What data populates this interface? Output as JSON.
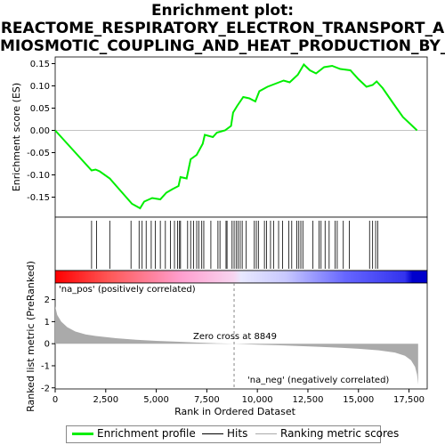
{
  "title": {
    "line1": "Enrichment plot:",
    "line2": "REACTOME_RESPIRATORY_ELECTRON_TRANSPORT_A",
    "line3": "MIOSMOTIC_COUPLING_AND_HEAT_PRODUCTION_BY_U"
  },
  "colors": {
    "es_line": "#00ee00",
    "hits": "#000000",
    "metric_fill": "#aaaaaa",
    "zero_cross": "#888888",
    "pos_label": "#dd0000",
    "neg_label": "#0000cc"
  },
  "chart_data": [
    {
      "type": "line",
      "name": "enrichment-profile",
      "ylabel": "Enrichment score (ES)",
      "xlim": [
        0,
        18400
      ],
      "ylim": [
        -0.195,
        0.165
      ],
      "yticks": [
        0.15,
        0.1,
        0.05,
        0.0,
        -0.05,
        -0.1,
        -0.15
      ],
      "ytick_labels": [
        "0.15",
        "0.10",
        "0.05",
        "0.00",
        "-0.05",
        "-0.10",
        "-0.15"
      ],
      "grid": false,
      "points": [
        [
          0,
          0.0
        ],
        [
          1800,
          -0.09
        ],
        [
          2000,
          -0.088
        ],
        [
          2200,
          -0.092
        ],
        [
          2700,
          -0.108
        ],
        [
          3800,
          -0.165
        ],
        [
          4200,
          -0.175
        ],
        [
          4400,
          -0.16
        ],
        [
          4800,
          -0.152
        ],
        [
          5200,
          -0.155
        ],
        [
          5500,
          -0.14
        ],
        [
          5800,
          -0.132
        ],
        [
          6100,
          -0.125
        ],
        [
          6200,
          -0.105
        ],
        [
          6500,
          -0.108
        ],
        [
          6700,
          -0.065
        ],
        [
          7000,
          -0.055
        ],
        [
          7300,
          -0.03
        ],
        [
          7400,
          -0.01
        ],
        [
          7800,
          -0.015
        ],
        [
          8000,
          -0.005
        ],
        [
          8400,
          0.0
        ],
        [
          8700,
          0.01
        ],
        [
          8800,
          0.04
        ],
        [
          9000,
          0.055
        ],
        [
          9300,
          0.075
        ],
        [
          9600,
          0.072
        ],
        [
          9900,
          0.065
        ],
        [
          10100,
          0.088
        ],
        [
          10500,
          0.098
        ],
        [
          10900,
          0.105
        ],
        [
          11300,
          0.112
        ],
        [
          11600,
          0.108
        ],
        [
          12000,
          0.125
        ],
        [
          12300,
          0.148
        ],
        [
          12600,
          0.135
        ],
        [
          12900,
          0.128
        ],
        [
          13300,
          0.142
        ],
        [
          13700,
          0.145
        ],
        [
          14100,
          0.138
        ],
        [
          14600,
          0.135
        ],
        [
          15000,
          0.115
        ],
        [
          15400,
          0.098
        ],
        [
          15700,
          0.102
        ],
        [
          15900,
          0.11
        ],
        [
          16200,
          0.095
        ],
        [
          16700,
          0.062
        ],
        [
          17200,
          0.03
        ],
        [
          17900,
          0.0
        ]
      ]
    },
    {
      "type": "hits",
      "name": "hits",
      "x": [
        1800,
        2050,
        2700,
        3750,
        4150,
        4300,
        4500,
        4750,
        4950,
        5200,
        5450,
        5700,
        5900,
        6050,
        6150,
        6200,
        6550,
        6700,
        6850,
        7000,
        7100,
        7250,
        7350,
        7700,
        8050,
        8150,
        8450,
        8500,
        8750,
        8850,
        8950,
        9050,
        9150,
        9250,
        9450,
        9850,
        9950,
        10050,
        10350,
        10450,
        10650,
        10800,
        11050,
        11250,
        11550,
        11700,
        11950,
        12050,
        12150,
        12250,
        12750,
        13050,
        13150,
        13350,
        13550,
        13850,
        13950,
        14250,
        14550,
        15550,
        15700,
        15850,
        15950
      ]
    },
    {
      "type": "area",
      "name": "ranking-metric-scores",
      "xlabel": "Rank in Ordered Dataset",
      "ylabel": "Ranked list metric (PreRanked)",
      "xlim": [
        0,
        18400
      ],
      "ylim": [
        -2.05,
        2.75
      ],
      "xticks": [
        0,
        2500,
        5000,
        7500,
        10000,
        12500,
        15000,
        17500
      ],
      "xtick_labels": [
        "0",
        "2,500",
        "5,000",
        "7,500",
        "10,000",
        "12,500",
        "15,000",
        "17,500"
      ],
      "yticks": [
        2,
        1,
        0,
        -1,
        -2
      ],
      "ytick_labels": [
        "2",
        "1",
        "0",
        "-1",
        "-2"
      ],
      "points": [
        [
          0,
          1.7
        ],
        [
          100,
          1.3
        ],
        [
          300,
          1.0
        ],
        [
          600,
          0.75
        ],
        [
          1000,
          0.55
        ],
        [
          1500,
          0.42
        ],
        [
          2000,
          0.35
        ],
        [
          3000,
          0.25
        ],
        [
          4000,
          0.18
        ],
        [
          5000,
          0.13
        ],
        [
          6000,
          0.09
        ],
        [
          7000,
          0.05
        ],
        [
          8000,
          0.02
        ],
        [
          8849,
          0.0
        ],
        [
          10000,
          -0.04
        ],
        [
          11000,
          -0.07
        ],
        [
          12000,
          -0.1
        ],
        [
          13000,
          -0.14
        ],
        [
          14000,
          -0.18
        ],
        [
          15000,
          -0.23
        ],
        [
          16000,
          -0.3
        ],
        [
          16800,
          -0.4
        ],
        [
          17300,
          -0.55
        ],
        [
          17600,
          -0.75
        ],
        [
          17800,
          -1.05
        ],
        [
          17900,
          -1.4
        ],
        [
          17950,
          -1.85
        ]
      ],
      "zero_cross": 8849,
      "zero_cross_label": "Zero cross at 8849",
      "pos_label": "'na_pos' (positively correlated)",
      "neg_label": "'na_neg' (negatively correlated)"
    }
  ],
  "legend": {
    "items": [
      {
        "label": "Enrichment profile"
      },
      {
        "label": "Hits"
      },
      {
        "label": "Ranking metric scores"
      }
    ]
  }
}
